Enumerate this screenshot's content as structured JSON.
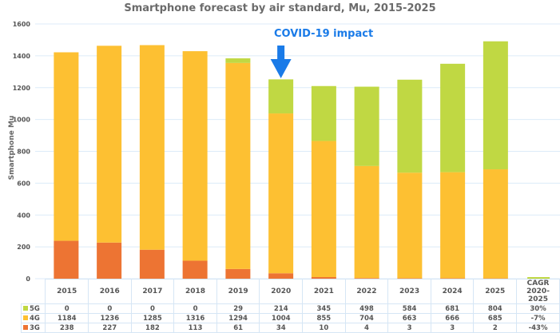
{
  "chart_data": {
    "type": "bar",
    "stacked": true,
    "title": "Smartphone forecast by air standard, Mu, 2015-2025",
    "xlabel": "",
    "ylabel": "Smartphone Mu",
    "ylim": [
      0,
      1600
    ],
    "yticks": [
      0,
      200,
      400,
      600,
      800,
      1000,
      1200,
      1400,
      1600
    ],
    "grid": true,
    "categories": [
      "2015",
      "2016",
      "2017",
      "2018",
      "2019",
      "2020",
      "2021",
      "2022",
      "2023",
      "2024",
      "2025"
    ],
    "series": [
      {
        "name": "3G",
        "color": "#ed7433",
        "values": [
          238,
          227,
          182,
          113,
          61,
          34,
          10,
          4,
          3,
          3,
          2
        ],
        "cagr": "-43%"
      },
      {
        "name": "4G",
        "color": "#fdc032",
        "values": [
          1184,
          1236,
          1285,
          1316,
          1294,
          1004,
          855,
          704,
          663,
          666,
          685
        ],
        "cagr": "-7%"
      },
      {
        "name": "5G",
        "color": "#c0d843",
        "values": [
          0,
          0,
          0,
          0,
          29,
          214,
          345,
          498,
          584,
          681,
          804
        ],
        "cagr": "30%"
      }
    ],
    "cagr_header": [
      "CAGR",
      "2020-2025"
    ],
    "annotation": {
      "text": "COVID-19 impact",
      "target": "2020",
      "color": "#1a7be8"
    },
    "legend": "data-table"
  }
}
